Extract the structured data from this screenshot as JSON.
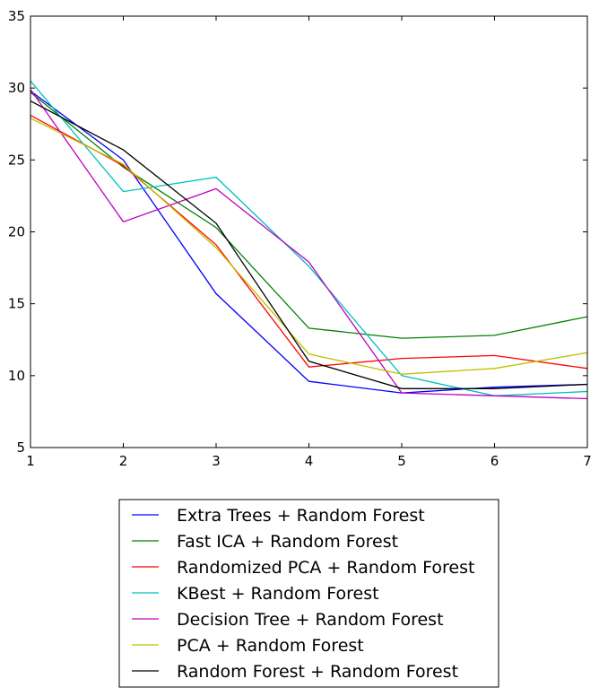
{
  "chart_data": {
    "type": "line",
    "title": "",
    "xlabel": "",
    "ylabel": "",
    "x": [
      1,
      2,
      3,
      4,
      5,
      6,
      7
    ],
    "xlim": [
      1,
      7
    ],
    "ylim": [
      5,
      35
    ],
    "xticks": [
      "1",
      "2",
      "3",
      "4",
      "5",
      "6",
      "7"
    ],
    "yticks": [
      "5",
      "10",
      "15",
      "20",
      "25",
      "30",
      "35"
    ],
    "grid": false,
    "legend_placement": "below",
    "series": [
      {
        "name": "Extra Trees + Random Forest",
        "color": "#0000ff",
        "values": [
          29.8,
          25.0,
          15.7,
          9.6,
          8.8,
          9.2,
          9.4
        ]
      },
      {
        "name": "Fast ICA + Random Forest",
        "color": "#008000",
        "values": [
          29.7,
          24.5,
          20.3,
          13.3,
          12.6,
          12.8,
          14.1
        ]
      },
      {
        "name": "Randomized PCA + Random Forest",
        "color": "#ff0000",
        "values": [
          28.1,
          24.6,
          19.1,
          10.6,
          11.2,
          11.4,
          10.5
        ]
      },
      {
        "name": "KBest + Random Forest",
        "color": "#00bfbf",
        "values": [
          30.5,
          22.8,
          23.8,
          17.6,
          10.0,
          8.6,
          8.9
        ]
      },
      {
        "name": "Decision Tree + Random Forest",
        "color": "#bf00bf",
        "values": [
          29.9,
          20.7,
          23.0,
          17.9,
          8.8,
          8.6,
          8.4
        ]
      },
      {
        "name": "PCA + Random Forest",
        "color": "#bfbf00",
        "values": [
          27.9,
          24.7,
          18.9,
          11.5,
          10.1,
          10.5,
          11.6
        ]
      },
      {
        "name": "Random Forest + Random Forest",
        "color": "#000000",
        "values": [
          29.1,
          25.7,
          20.6,
          11.0,
          9.1,
          9.1,
          9.4
        ]
      }
    ]
  }
}
